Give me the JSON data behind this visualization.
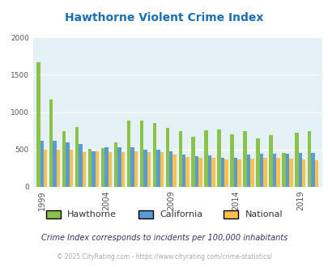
{
  "title": "Hawthorne Violent Crime Index",
  "title_color": "#1a6faf",
  "footnote1": "Crime Index corresponds to incidents per 100,000 inhabitants",
  "footnote2": "© 2025 CityRating.com - https://www.cityrating.com/crime-statistics/",
  "years": [
    1999,
    2000,
    2001,
    2002,
    2003,
    2004,
    2005,
    2006,
    2007,
    2008,
    2009,
    2010,
    2011,
    2012,
    2013,
    2014,
    2015,
    2016,
    2017,
    2018,
    2019,
    2020
  ],
  "hawthorne": [
    1670,
    1170,
    750,
    800,
    510,
    520,
    590,
    890,
    890,
    850,
    790,
    750,
    670,
    760,
    770,
    700,
    750,
    650,
    690,
    450,
    720,
    750
  ],
  "california": [
    615,
    615,
    590,
    570,
    480,
    530,
    530,
    530,
    500,
    500,
    475,
    435,
    415,
    420,
    395,
    390,
    430,
    445,
    445,
    445,
    450,
    455
  ],
  "national": [
    500,
    500,
    500,
    470,
    475,
    465,
    470,
    475,
    465,
    460,
    430,
    405,
    390,
    390,
    370,
    365,
    375,
    390,
    395,
    375,
    370,
    355
  ],
  "hawthorne_color": "#8bc34a",
  "california_color": "#5b9bd5",
  "national_color": "#ffc04d",
  "bg_color": "#e4f2f7",
  "ylim": [
    0,
    2000
  ],
  "yticks": [
    0,
    500,
    1000,
    1500,
    2000
  ],
  "xtick_years": [
    1999,
    2004,
    2009,
    2014,
    2019
  ],
  "legend_labels": [
    "Hawthorne",
    "California",
    "National"
  ],
  "bar_width": 0.28,
  "figsize": [
    4.06,
    3.3
  ],
  "dpi": 100
}
